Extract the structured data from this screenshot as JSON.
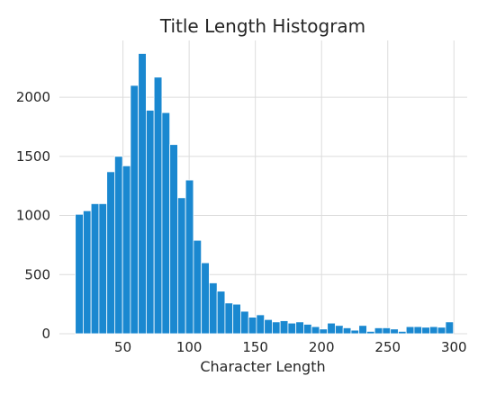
{
  "chart_data": {
    "type": "bar",
    "title": "Title Length Histogram",
    "xlabel": "Character Length",
    "ylabel": "",
    "xlim": [
      2,
      310
    ],
    "ylim": [
      0,
      2480
    ],
    "xticks": [
      50,
      100,
      150,
      200,
      250,
      300
    ],
    "yticks": [
      0,
      500,
      1000,
      1500,
      2000
    ],
    "grid": true,
    "bin_start": 14,
    "bin_width": 5.95,
    "values": [
      1010,
      1040,
      1100,
      1100,
      1370,
      1500,
      1420,
      2100,
      2370,
      1890,
      2170,
      1870,
      1600,
      1150,
      1300,
      790,
      600,
      430,
      360,
      260,
      250,
      190,
      140,
      160,
      120,
      100,
      110,
      90,
      100,
      80,
      60,
      40,
      90,
      70,
      50,
      30,
      70,
      20,
      50,
      50,
      40,
      20,
      60,
      60,
      55,
      60,
      55,
      100
    ],
    "colors": {
      "bar": "#1a88d0",
      "grid": "#dcdcdc",
      "text": "#262626"
    }
  }
}
